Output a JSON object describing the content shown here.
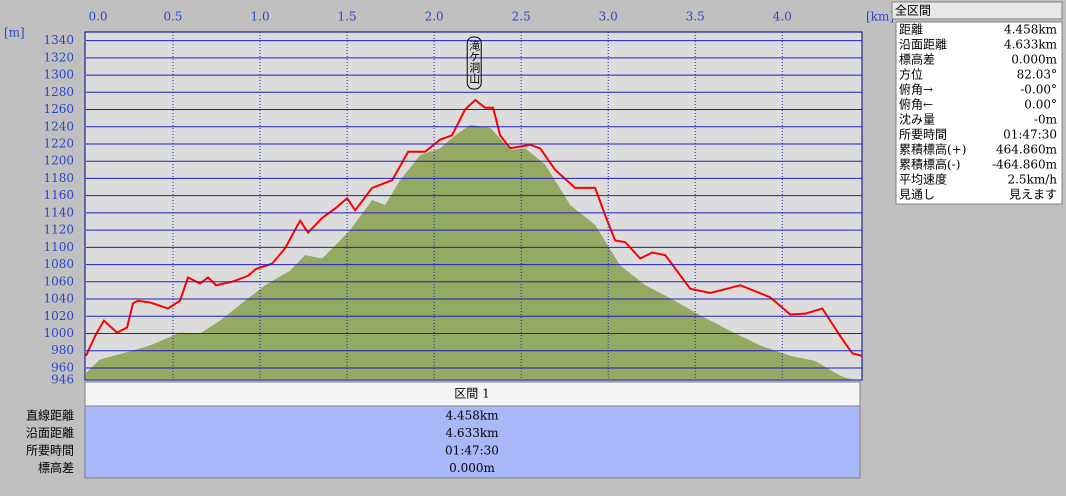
{
  "chart_data": {
    "type": "profile",
    "x_label": "[km]",
    "y_label": "[m]",
    "xlim": [
      0,
      4.458
    ],
    "ylim": [
      946,
      1350
    ],
    "xticks": [
      {
        "value": 0,
        "label": "0.0"
      },
      0.5,
      {
        "value": 1,
        "label": "1.0"
      },
      1.5,
      {
        "value": 2,
        "label": "2.0"
      },
      2.5,
      {
        "value": 3,
        "label": "3.0"
      },
      3.5,
      {
        "value": 4,
        "label": "4.0"
      }
    ],
    "yticks": [
      946,
      960,
      980,
      1000,
      1020,
      1040,
      1060,
      1080,
      1100,
      1120,
      1140,
      1160,
      1180,
      1200,
      1220,
      1240,
      1260,
      1280,
      1300,
      1320,
      1340
    ],
    "grid": true,
    "annotation": {
      "text": "滝ケ洞山",
      "x": 2.236
    },
    "series": [
      {
        "kind": "area",
        "color": "#94a962",
        "x": [
          0,
          0.08,
          0.195,
          0.368,
          0.54,
          0.655,
          0.77,
          0.914,
          1.029,
          1.172,
          1.259,
          1.356,
          1.431,
          1.517,
          1.644,
          1.718,
          1.805,
          1.92,
          2.034,
          2.121,
          2.207,
          2.322,
          2.437,
          2.523,
          2.638,
          2.782,
          2.925,
          3.069,
          3.213,
          3.356,
          3.529,
          3.701,
          3.874,
          4.046,
          4.19,
          4.333,
          4.391,
          4.458
        ],
        "values": [
          954,
          970,
          976,
          986,
          1001,
          1000,
          1015,
          1038,
          1056,
          1073,
          1091,
          1087,
          1102,
          1120,
          1155,
          1149,
          1178,
          1207,
          1215,
          1230,
          1242,
          1239,
          1213,
          1215,
          1196,
          1149,
          1126,
          1079,
          1056,
          1041,
          1021,
          1003,
          986,
          974,
          968,
          951,
          947,
          946
        ]
      },
      {
        "kind": "line",
        "color": "#ff0000",
        "x": [
          0,
          0.052,
          0.103,
          0.178,
          0.236,
          0.27,
          0.299,
          0.368,
          0.471,
          0.54,
          0.586,
          0.655,
          0.701,
          0.747,
          0.839,
          0.931,
          0.977,
          1.069,
          1.144,
          1.23,
          1.276,
          1.356,
          1.431,
          1.5,
          1.546,
          1.644,
          1.759,
          1.851,
          1.948,
          2.034,
          2.103,
          2.178,
          2.236,
          2.293,
          2.339,
          2.379,
          2.437,
          2.552,
          2.609,
          2.695,
          2.81,
          2.925,
          2.983,
          3.04,
          3.098,
          3.184,
          3.253,
          3.328,
          3.471,
          3.586,
          3.644,
          3.759,
          3.931,
          4.046,
          4.132,
          4.23,
          4.333,
          4.402,
          4.458
        ],
        "values": [
          974,
          997,
          1015,
          1001,
          1007,
          1035,
          1038,
          1036,
          1029,
          1038,
          1065,
          1058,
          1065,
          1056,
          1060,
          1067,
          1075,
          1081,
          1099,
          1131,
          1117,
          1134,
          1145,
          1157,
          1143,
          1169,
          1178,
          1211,
          1211,
          1225,
          1230,
          1260,
          1271,
          1262,
          1262,
          1230,
          1215,
          1219,
          1215,
          1190,
          1169,
          1169,
          1137,
          1108,
          1106,
          1087,
          1094,
          1091,
          1052,
          1047,
          1050,
          1056,
          1042,
          1022,
          1023,
          1029,
          997,
          977,
          974
        ]
      }
    ]
  },
  "summary_panel": {
    "title": "全区間",
    "rows": [
      [
        "距離",
        "4.458km"
      ],
      [
        "沿面距離",
        "4.633km"
      ],
      [
        "標高差",
        "0.000m"
      ],
      [
        "方位",
        "82.03°"
      ],
      [
        "俯角→",
        "-0.00°"
      ],
      [
        "俯角←",
        "0.00°"
      ],
      [
        "沈み量",
        "-0m"
      ],
      [
        "所要時間",
        "01:47:30"
      ],
      [
        "累積標高(+)",
        "464.860m"
      ],
      [
        "累積標高(-)",
        "-464.860m"
      ],
      [
        "平均速度",
        "2.5km/h"
      ],
      [
        "見通し",
        "見えます"
      ]
    ]
  },
  "section_table": {
    "header": "区間 1",
    "rows": [
      [
        "直線距離",
        "4.458km"
      ],
      [
        "沿面距離",
        "4.633km"
      ],
      [
        "所要時間",
        "01:47:30"
      ],
      [
        "標高差",
        "0.000m"
      ]
    ]
  }
}
